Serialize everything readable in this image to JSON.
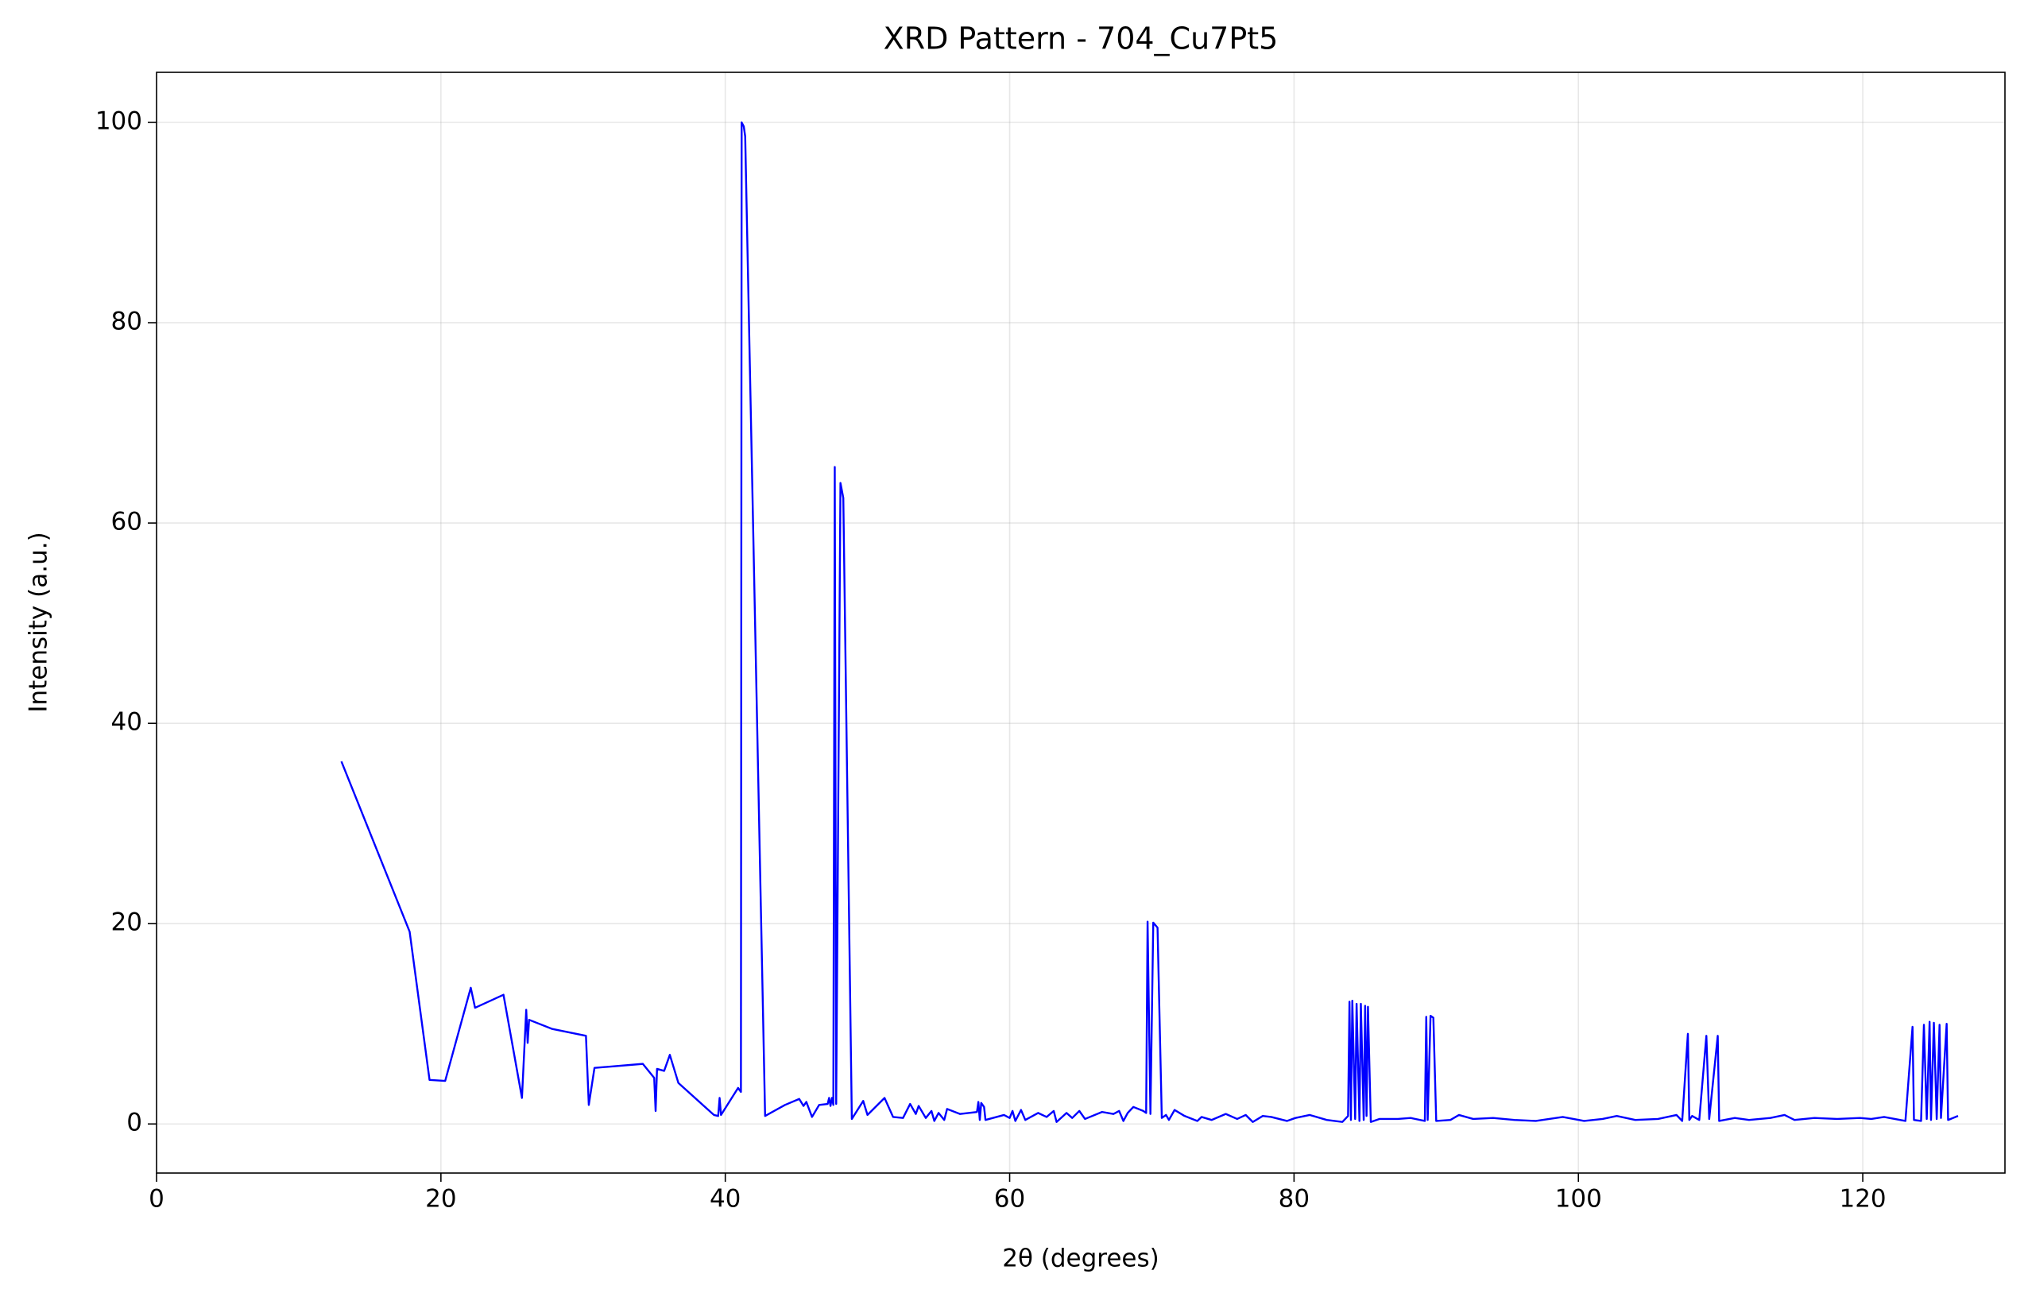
{
  "chart_data": {
    "type": "line",
    "title": "XRD Pattern - 704_Cu7Pt5",
    "x_label": "2θ (degrees)",
    "y_label": "Intensity (a.u.)",
    "xlim": [
      0,
      130
    ],
    "ylim": [
      -4.9,
      105
    ],
    "xticks": [
      0,
      20,
      40,
      60,
      80,
      100,
      120
    ],
    "yticks": [
      0,
      20,
      40,
      60,
      80,
      100
    ],
    "grid": true,
    "series": [
      {
        "color": "#0000ff",
        "x": [
          13.0,
          17.8,
          19.2,
          20.3,
          22.1,
          22.4,
          24.4,
          25.7,
          26.0,
          26.1,
          26.2,
          27.8,
          30.2,
          30.4,
          30.8,
          34.2,
          35.0,
          35.1,
          35.2,
          35.7,
          36.1,
          36.7,
          39.2,
          39.5,
          39.6,
          39.7,
          40.9,
          41.1,
          41.15,
          41.3,
          41.4,
          42.8,
          44.2,
          45.2,
          45.5,
          45.7,
          46.1,
          46.6,
          47.2,
          47.3,
          47.4,
          47.5,
          47.6,
          47.7,
          47.8,
          48.1,
          48.3,
          48.9,
          49.7,
          50.0,
          51.2,
          51.8,
          52.5,
          53.0,
          53.4,
          53.6,
          54.1,
          54.5,
          54.7,
          55.0,
          55.4,
          55.6,
          56.5,
          57.7,
          57.8,
          57.9,
          58.0,
          58.2,
          58.3,
          59.6,
          60.0,
          60.2,
          60.4,
          60.8,
          61.1,
          62.0,
          62.6,
          63.1,
          63.3,
          64.0,
          64.4,
          64.9,
          65.3,
          66.5,
          67.3,
          67.7,
          68.0,
          68.3,
          68.7,
          69.4,
          69.6,
          69.7,
          69.9,
          70.1,
          70.4,
          70.7,
          71.0,
          71.2,
          71.6,
          72.3,
          73.2,
          73.5,
          74.2,
          75.2,
          76.0,
          76.6,
          77.1,
          77.8,
          78.4,
          79.5,
          80.1,
          81.1,
          82.3,
          83.4,
          83.8,
          83.9,
          84.0,
          84.1,
          84.3,
          84.4,
          84.6,
          84.7,
          84.9,
          85.0,
          85.1,
          85.2,
          85.4,
          86.0,
          87.3,
          88.2,
          89.2,
          89.3,
          89.4,
          89.6,
          89.8,
          90.0,
          91.0,
          91.6,
          92.6,
          94.0,
          95.5,
          97.0,
          98.9,
          100.4,
          101.7,
          102.7,
          104.0,
          105.6,
          106.9,
          107.3,
          107.7,
          107.8,
          108.0,
          108.5,
          109.0,
          109.2,
          109.8,
          109.9,
          111.0,
          112.0,
          113.5,
          114.5,
          115.2,
          116.6,
          118.2,
          119.8,
          120.6,
          121.5,
          123.0,
          123.5,
          123.6,
          124.1,
          124.3,
          124.5,
          124.7,
          124.8,
          125.0,
          125.2,
          125.4,
          125.5,
          125.9,
          126.0,
          126.7
        ],
        "values": [
          36.2,
          19.2,
          4.4,
          4.3,
          13.6,
          11.6,
          12.9,
          2.6,
          11.4,
          8.1,
          10.4,
          9.5,
          8.8,
          1.9,
          5.6,
          6.0,
          4.6,
          1.3,
          5.5,
          5.3,
          6.9,
          4.1,
          0.9,
          0.8,
          2.6,
          0.9,
          3.6,
          3.2,
          100.0,
          99.6,
          98.6,
          0.8,
          1.9,
          2.5,
          1.8,
          2.2,
          0.7,
          1.9,
          2.0,
          2.6,
          1.8,
          2.6,
          1.9,
          65.6,
          2.0,
          64.0,
          62.5,
          0.5,
          2.3,
          0.9,
          2.6,
          0.7,
          0.6,
          2.0,
          1.0,
          1.8,
          0.6,
          1.3,
          0.3,
          1.1,
          0.4,
          1.5,
          1.0,
          1.2,
          2.2,
          0.4,
          2.1,
          1.7,
          0.4,
          0.9,
          0.6,
          1.3,
          0.3,
          1.4,
          0.4,
          1.1,
          0.7,
          1.3,
          0.2,
          1.1,
          0.6,
          1.3,
          0.5,
          1.2,
          1.0,
          1.3,
          0.3,
          1.1,
          1.7,
          1.3,
          1.1,
          20.2,
          1.0,
          20.1,
          19.6,
          0.6,
          0.9,
          0.4,
          1.4,
          0.8,
          0.3,
          0.7,
          0.4,
          1.0,
          0.5,
          0.9,
          0.2,
          0.8,
          0.7,
          0.3,
          0.6,
          0.9,
          0.4,
          0.2,
          0.8,
          12.2,
          0.4,
          12.3,
          0.5,
          12.0,
          0.3,
          12.0,
          0.4,
          11.8,
          0.8,
          11.7,
          0.2,
          0.5,
          0.5,
          0.6,
          0.3,
          10.7,
          0.4,
          10.8,
          10.6,
          0.3,
          0.4,
          0.9,
          0.5,
          0.6,
          0.4,
          0.3,
          0.7,
          0.3,
          0.5,
          0.8,
          0.4,
          0.5,
          0.9,
          0.3,
          9.0,
          0.4,
          0.8,
          0.4,
          8.8,
          0.5,
          8.8,
          0.3,
          0.6,
          0.4,
          0.6,
          0.9,
          0.4,
          0.6,
          0.5,
          0.6,
          0.5,
          0.7,
          0.3,
          9.7,
          0.4,
          0.3,
          9.9,
          0.5,
          10.2,
          0.4,
          10.1,
          0.5,
          9.9,
          0.6,
          10.0,
          0.4,
          0.8
        ]
      }
    ]
  }
}
